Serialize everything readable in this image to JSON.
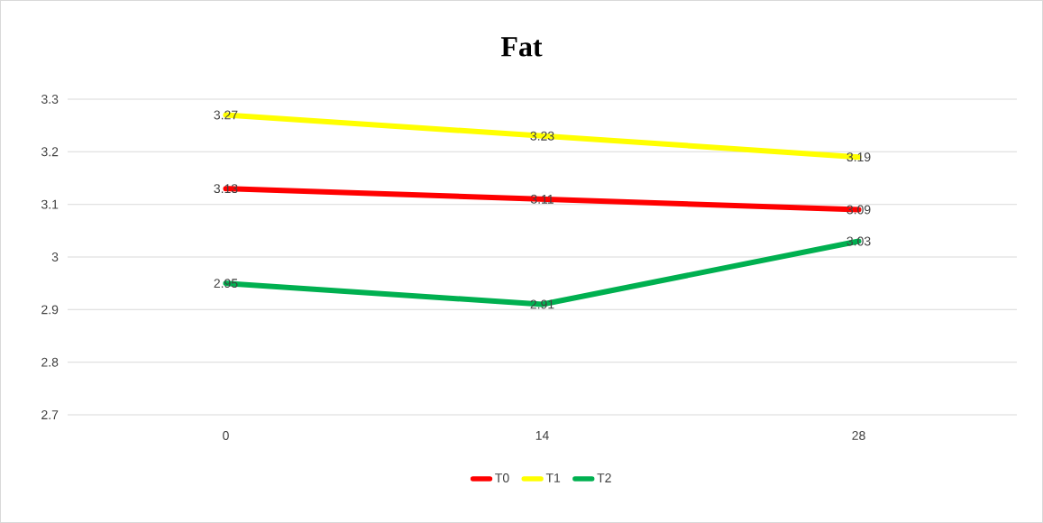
{
  "chart_data": {
    "type": "line",
    "title": "Fat",
    "categories": [
      "0",
      "14",
      "28"
    ],
    "series": [
      {
        "name": "T0",
        "color": "#ff0000",
        "values": [
          3.13,
          3.11,
          3.09
        ]
      },
      {
        "name": "T1",
        "color": "#ffff00",
        "values": [
          3.27,
          3.23,
          3.19
        ]
      },
      {
        "name": "T2",
        "color": "#00b050",
        "values": [
          2.95,
          2.91,
          3.03
        ]
      }
    ],
    "ylim": [
      2.7,
      3.3
    ],
    "yticks": [
      2.7,
      2.8,
      2.9,
      3,
      3.1,
      3.2,
      3.3
    ],
    "grid": "y",
    "legend": "bottom",
    "data_labels": true,
    "marker": "none",
    "line_style": "solid"
  }
}
